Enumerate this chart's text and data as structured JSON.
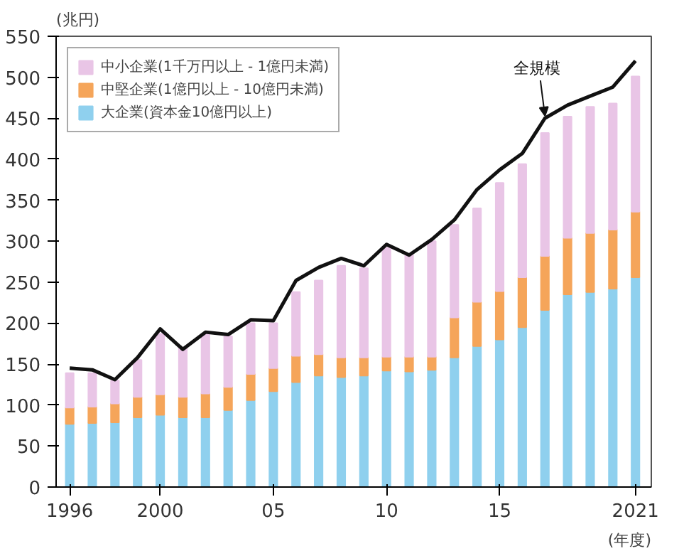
{
  "chart_data": {
    "type": "bar",
    "stacked": true,
    "xlabel": "(年度)",
    "ylabel": "(兆円)",
    "x": [
      1996,
      1997,
      1998,
      1999,
      2000,
      2001,
      2002,
      2003,
      2004,
      2005,
      2006,
      2007,
      2008,
      2009,
      2010,
      2011,
      2012,
      2013,
      2014,
      2015,
      2016,
      2017,
      2018,
      2019,
      2020,
      2021
    ],
    "series": [
      {
        "name": "大企業(資本金10億円以上)",
        "color": "#8fd0ee",
        "values": [
          77,
          78,
          79,
          85,
          88,
          85,
          85,
          94,
          106,
          117,
          128,
          136,
          134,
          136,
          142,
          141,
          143,
          158,
          172,
          180,
          195,
          216,
          235,
          238,
          242,
          256
        ]
      },
      {
        "name": "中堅企業(1億円以上 - 10億円未満)",
        "color": "#f5a55a",
        "values": [
          20,
          20,
          23,
          25,
          25,
          25,
          29,
          28,
          32,
          28,
          32,
          26,
          24,
          22,
          17,
          18,
          16,
          49,
          54,
          59,
          61,
          66,
          69,
          72,
          72,
          80
        ]
      },
      {
        "name": "中小企業(1千万円以上 - 1億円未満)",
        "color": "#e9c5e6",
        "values": [
          42,
          41,
          28,
          45,
          74,
          60,
          72,
          62,
          62,
          55,
          78,
          90,
          112,
          109,
          133,
          124,
          141,
          113,
          114,
          132,
          138,
          150,
          148,
          154,
          154,
          165
        ]
      },
      {
        "name": "全規模",
        "type": "line",
        "color": "#111111",
        "values": [
          145,
          143,
          131,
          158,
          193,
          168,
          189,
          186,
          204,
          203,
          252,
          268,
          279,
          270,
          296,
          283,
          302,
          326,
          363,
          387,
          407,
          450,
          466,
          477,
          488,
          520
        ]
      }
    ],
    "xlim": [
      1995.4,
      2021.7
    ],
    "xticks": [
      1996,
      2000,
      {
        "value": 2005,
        "label": "05"
      },
      {
        "value": 2010,
        "label": "10"
      },
      {
        "value": 2015,
        "label": "15"
      },
      2021
    ],
    "ylim": [
      0,
      550
    ],
    "yticks": [
      0,
      50,
      100,
      150,
      200,
      250,
      300,
      350,
      400,
      450,
      500,
      550
    ],
    "grid": false,
    "legend": "top left",
    "marker": "none",
    "line_style": "solid"
  }
}
